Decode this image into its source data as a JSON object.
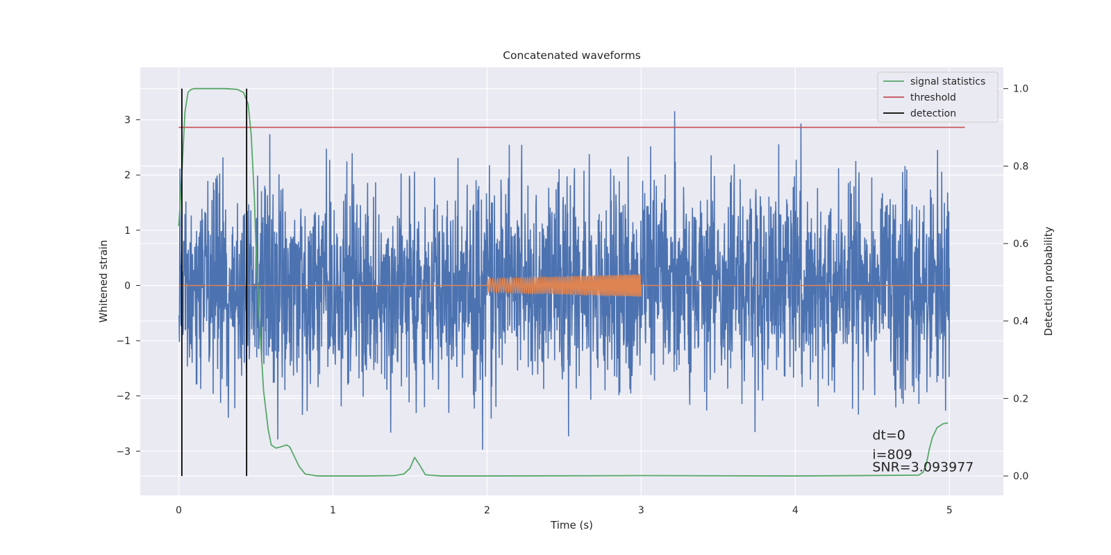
{
  "chart_data": {
    "type": "line",
    "title": "Concatenated waveforms",
    "xlabel": "Time (s)",
    "ylabel": "Whitened strain",
    "y2label": "Detection probability",
    "xlim": [
      -0.25,
      5.35
    ],
    "ylim": [
      -3.8,
      3.95
    ],
    "y2lim": [
      -0.05,
      1.055
    ],
    "xticks": [
      0,
      1,
      2,
      3,
      4,
      5
    ],
    "yticks": [
      -3,
      -2,
      -1,
      0,
      1,
      2,
      3
    ],
    "y2ticks": [
      0.0,
      0.2,
      0.4,
      0.6,
      0.8,
      1.0
    ],
    "xtick_labels": [
      "0",
      "1",
      "2",
      "3",
      "4",
      "5"
    ],
    "ytick_labels": [
      "−3",
      "−2",
      "−1",
      "0",
      "1",
      "2",
      "3"
    ],
    "y2tick_labels": [
      "0.0",
      "0.2",
      "0.4",
      "0.6",
      "0.8",
      "1.0"
    ],
    "grid": true,
    "legend_position": "top-right",
    "series": [
      {
        "name": "",
        "kind": "noise",
        "axis": "left",
        "color": "#4c72b0",
        "x_range": [
          0,
          5
        ],
        "typical_amplitude": 1.0,
        "peak_max": 3.6,
        "peak_min": -3.4
      },
      {
        "name": "",
        "kind": "chirp",
        "axis": "left",
        "color": "#dd8452",
        "x_range": [
          0,
          5
        ],
        "chirp_start": 2.0,
        "chirp_end": 3.0,
        "amplitude_start": 0.12,
        "amplitude_end": 0.2
      },
      {
        "name": "signal statistics",
        "axis": "right",
        "color": "#55a868",
        "x": [
          0,
          0.02,
          0.04,
          0.06,
          0.08,
          0.1,
          0.2,
          0.3,
          0.38,
          0.42,
          0.45,
          0.47,
          0.49,
          0.5,
          0.52,
          0.55,
          0.58,
          0.6,
          0.63,
          0.66,
          0.7,
          0.72,
          0.75,
          0.78,
          0.82,
          0.9,
          1.0,
          1.2,
          1.4,
          1.46,
          1.5,
          1.53,
          1.56,
          1.6,
          1.7,
          2.0,
          3.0,
          4.0,
          4.8,
          4.83,
          4.85,
          4.87,
          4.89,
          4.92,
          4.96,
          4.99
        ],
        "y": [
          0.645,
          0.78,
          0.94,
          0.99,
          0.998,
          1.0,
          1.0,
          1.0,
          0.998,
          0.99,
          0.96,
          0.88,
          0.72,
          0.6,
          0.42,
          0.22,
          0.12,
          0.08,
          0.072,
          0.075,
          0.08,
          0.075,
          0.05,
          0.025,
          0.005,
          0.0,
          0.0,
          0.0,
          0.001,
          0.005,
          0.02,
          0.048,
          0.03,
          0.003,
          0.0,
          0.0,
          0.001,
          0.0,
          0.002,
          0.01,
          0.03,
          0.07,
          0.1,
          0.125,
          0.135,
          0.137
        ]
      },
      {
        "name": "threshold",
        "axis": "right",
        "color": "#c44e52",
        "x": [
          0,
          5.1
        ],
        "y": [
          0.9,
          0.9
        ]
      },
      {
        "name": "detection",
        "axis": "right",
        "color": "#000000",
        "x": [
          0.02,
          0.44
        ],
        "y_range": [
          0.0,
          1.0
        ]
      }
    ],
    "annotations": [
      "dt=0",
      "i=809",
      "SNR=3.093977"
    ]
  }
}
